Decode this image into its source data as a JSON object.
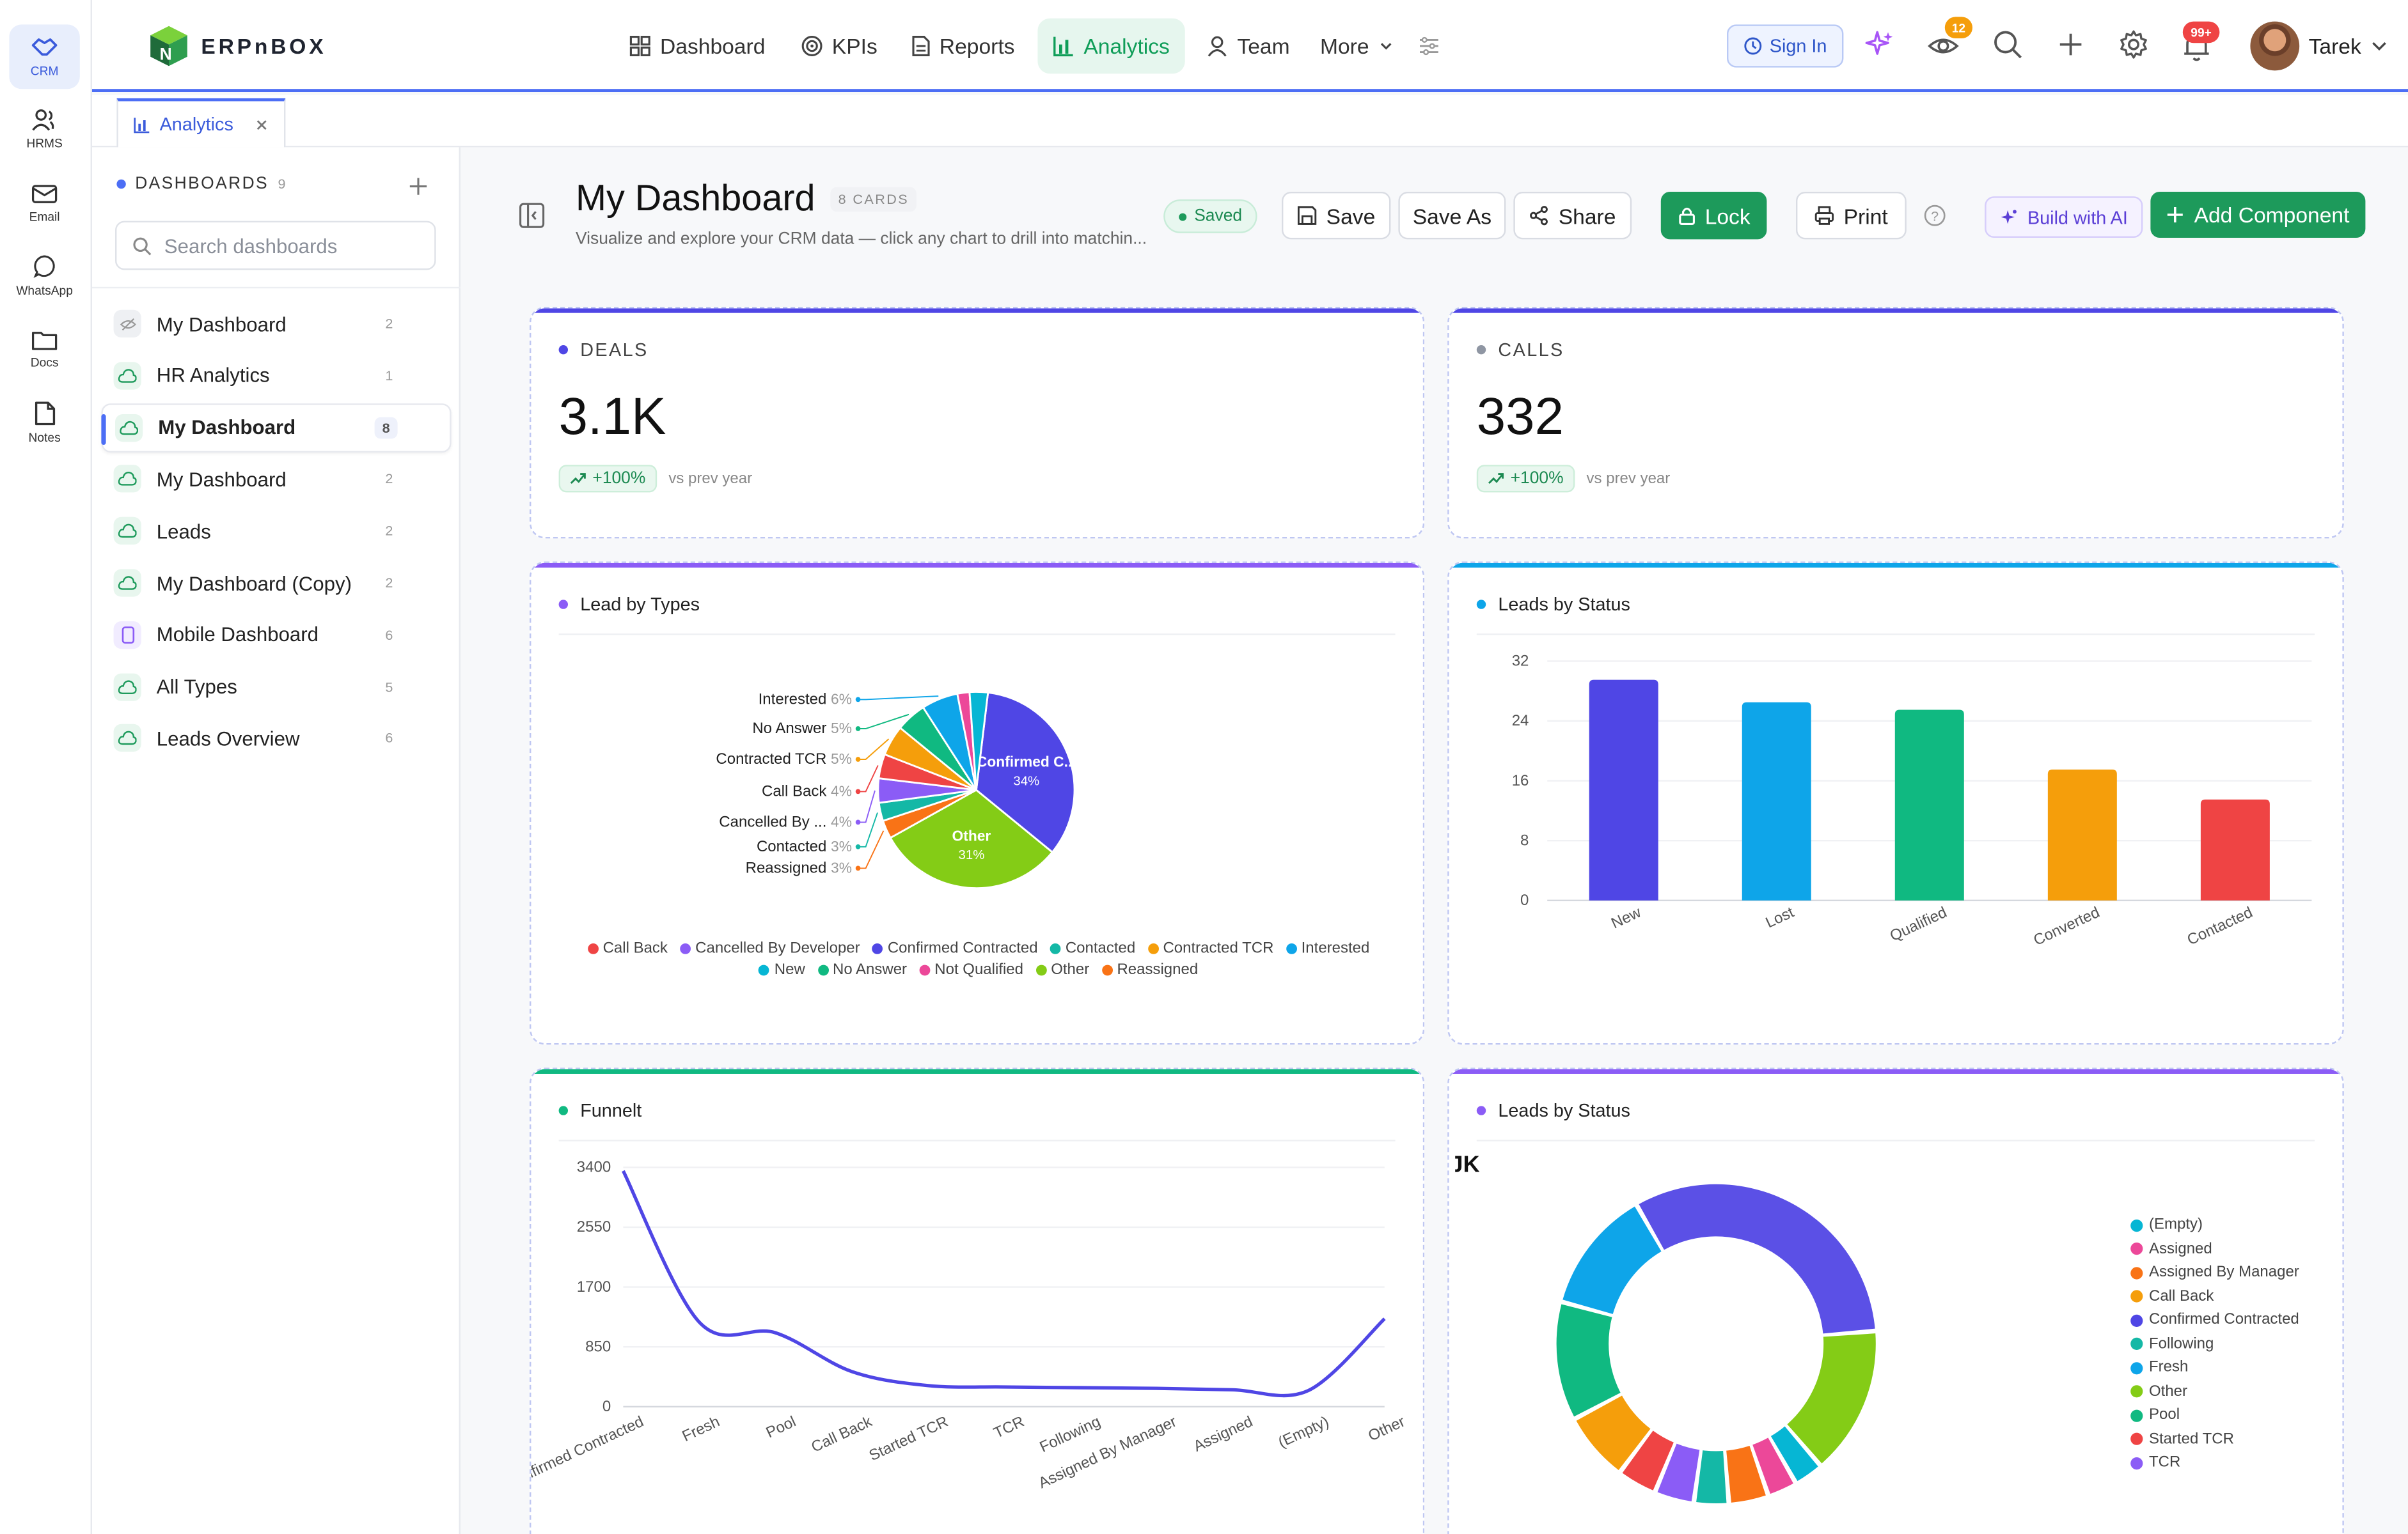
{
  "rail": [
    {
      "label": "CRM",
      "icon": "handshake-icon",
      "active": true
    },
    {
      "label": "HRMS",
      "icon": "users-icon"
    },
    {
      "label": "Email",
      "icon": "mail-icon"
    },
    {
      "label": "WhatsApp",
      "icon": "chat-bubble-icon"
    },
    {
      "label": "Docs",
      "icon": "folder-icon"
    },
    {
      "label": "Notes",
      "icon": "note-icon"
    }
  ],
  "logo_text": "ERPnBOX",
  "nav": [
    {
      "label": "Dashboard",
      "icon": "grid-icon"
    },
    {
      "label": "KPIs",
      "icon": "target-icon"
    },
    {
      "label": "Reports",
      "icon": "document-icon"
    },
    {
      "label": "Analytics",
      "icon": "bar-chart-icon",
      "active": true
    },
    {
      "label": "Team",
      "icon": "user-icon"
    },
    {
      "label": "More",
      "icon": "chevron-down-icon"
    }
  ],
  "topbar": {
    "sign_in": "Sign In",
    "eye_badge": "12",
    "bell_badge": "99+",
    "user": "Tarek"
  },
  "tab": {
    "label": "Analytics"
  },
  "sidebar": {
    "heading": "DASHBOARDS",
    "count": "9",
    "search_placeholder": "Search dashboards",
    "items": [
      {
        "label": "My Dashboard",
        "count": "2",
        "icon": "hidden-icon"
      },
      {
        "label": "HR Analytics",
        "count": "1",
        "icon": "cloud-icon"
      },
      {
        "label": "My Dashboard",
        "count": "8",
        "icon": "cloud-icon",
        "active": true
      },
      {
        "label": "My Dashboard",
        "count": "2",
        "icon": "cloud-icon"
      },
      {
        "label": "Leads",
        "count": "2",
        "icon": "cloud-icon"
      },
      {
        "label": "My Dashboard (Copy)",
        "count": "2",
        "icon": "cloud-icon"
      },
      {
        "label": "Mobile Dashboard",
        "count": "6",
        "icon": "phone-icon"
      },
      {
        "label": "All Types",
        "count": "5",
        "icon": "cloud-icon"
      },
      {
        "label": "Leads Overview",
        "count": "6",
        "icon": "cloud-icon"
      }
    ]
  },
  "header": {
    "title": "My Dashboard",
    "cards_badge": "8 CARDS",
    "subtitle": "Visualize and explore your CRM data — click any chart to drill into matchin...",
    "saved": "Saved",
    "save": "Save",
    "save_as": "Save As",
    "share": "Share",
    "lock": "Lock",
    "print": "Print",
    "build_ai": "Build with AI",
    "add_component": "Add Component"
  },
  "kpis": [
    {
      "label": "DEALS",
      "value": "3.1K",
      "delta": "+100%",
      "caption": "vs prev year",
      "color": "#4f46e5"
    },
    {
      "label": "CALLS",
      "value": "332",
      "delta": "+100%",
      "caption": "vs prev year",
      "color": "#4f46e5"
    }
  ],
  "cards": {
    "lead_types": {
      "title": "Lead by Types",
      "color": "#8b5cf6"
    },
    "leads_status_bar": {
      "title": "Leads by Status",
      "color": "#0ea5e9"
    },
    "funnel": {
      "title": "Funnelt",
      "color": "#10b981"
    },
    "leads_status_donut": {
      "title": "Leads by Status",
      "color": "#8b5cf6",
      "corner_value": "JK"
    }
  },
  "chart_data": [
    {
      "type": "pie",
      "title": "Lead by Types",
      "slices": [
        {
          "name": "Confirmed C...",
          "value": 34,
          "color": "#4f46e5",
          "label_inside": "Confirmed C...",
          "pct_text": "34%"
        },
        {
          "name": "Other",
          "value": 31,
          "color": "#84cc16",
          "label_inside": "Other",
          "pct_text": "31%"
        },
        {
          "name": "Reassigned",
          "value": 3,
          "color": "#f97316",
          "label": "Reassigned",
          "pct_text": "3%"
        },
        {
          "name": "Contacted",
          "value": 3,
          "color": "#14b8a6",
          "label": "Contacted",
          "pct_text": "3%"
        },
        {
          "name": "Cancelled By ...",
          "value": 4,
          "color": "#8b5cf6",
          "label": "Cancelled By ...",
          "pct_text": "4%"
        },
        {
          "name": "Call Back",
          "value": 4,
          "color": "#ef4444",
          "label": "Call Back",
          "pct_text": "4%"
        },
        {
          "name": "Contracted TCR",
          "value": 5,
          "color": "#f59e0b",
          "label": "Contracted TCR",
          "pct_text": "5%"
        },
        {
          "name": "No Answer",
          "value": 5,
          "color": "#10b981",
          "label": "No Answer",
          "pct_text": "5%"
        },
        {
          "name": "Interested",
          "value": 6,
          "color": "#0ea5e9",
          "label": "Interested",
          "pct_text": "6%"
        },
        {
          "name": "Not Qualified",
          "value": 2,
          "color": "#ec4899"
        },
        {
          "name": "New",
          "value": 3,
          "color": "#06b6d4"
        }
      ],
      "legend": [
        {
          "name": "Call Back",
          "color": "#ef4444"
        },
        {
          "name": "Cancelled By Developer",
          "color": "#8b5cf6"
        },
        {
          "name": "Confirmed Contracted",
          "color": "#4f46e5"
        },
        {
          "name": "Contacted",
          "color": "#14b8a6"
        },
        {
          "name": "Contracted TCR",
          "color": "#f59e0b"
        },
        {
          "name": "Interested",
          "color": "#0ea5e9"
        },
        {
          "name": "New",
          "color": "#06b6d4"
        },
        {
          "name": "No Answer",
          "color": "#10b981"
        },
        {
          "name": "Not Qualified",
          "color": "#ec4899"
        },
        {
          "name": "Other",
          "color": "#84cc16"
        },
        {
          "name": "Reassigned",
          "color": "#f97316"
        }
      ]
    },
    {
      "type": "bar",
      "title": "Leads by Status",
      "categories": [
        "New",
        "Lost",
        "Qualified",
        "Converted",
        "Contacted"
      ],
      "values": [
        29.5,
        26.5,
        25.5,
        17.5,
        13.5
      ],
      "colors": [
        "#4f46e5",
        "#0ea5e9",
        "#10b981",
        "#f59e0b",
        "#ef4444"
      ],
      "ylim": [
        0,
        32
      ],
      "yticks": [
        0,
        8,
        16,
        24,
        32
      ]
    },
    {
      "type": "line",
      "title": "Funnelt",
      "categories": [
        "Confirmed Contracted",
        "Fresh",
        "Pool",
        "Call Back",
        "Started TCR",
        "TCR",
        "Following",
        "Assigned By Manager",
        "Assigned",
        "(Empty)",
        "Other"
      ],
      "values": [
        3350,
        1200,
        1050,
        500,
        300,
        280,
        270,
        260,
        240,
        230,
        1250
      ],
      "ylim": [
        0,
        3400
      ],
      "yticks": [
        0,
        850,
        1700,
        2550,
        3400
      ],
      "color": "#4f46e5"
    },
    {
      "type": "pie",
      "title": "Leads by Status",
      "donut": true,
      "slices": [
        {
          "name": "Confirmed Contracted",
          "value": 32,
          "color": "#5b50e6"
        },
        {
          "name": "Other",
          "value": 15,
          "color": "#84cc16"
        },
        {
          "name": "(Empty)",
          "value": 3,
          "color": "#06b6d4"
        },
        {
          "name": "Assigned",
          "value": 3,
          "color": "#ec4899"
        },
        {
          "name": "Assigned By Manager",
          "value": 4,
          "color": "#f97316"
        },
        {
          "name": "Following",
          "value": 3.5,
          "color": "#14b8a6"
        },
        {
          "name": "TCR",
          "value": 4,
          "color": "#8b5cf6"
        },
        {
          "name": "Started TCR",
          "value": 4,
          "color": "#ef4444"
        },
        {
          "name": "Call Back",
          "value": 7,
          "color": "#f59e0b"
        },
        {
          "name": "Pool",
          "value": 12,
          "color": "#10b981"
        },
        {
          "name": "Fresh",
          "value": 12.5,
          "color": "#0ea5e9"
        }
      ],
      "legend": [
        {
          "name": "(Empty)",
          "color": "#06b6d4"
        },
        {
          "name": "Assigned",
          "color": "#ec4899"
        },
        {
          "name": "Assigned By Manager",
          "color": "#f97316"
        },
        {
          "name": "Call Back",
          "color": "#f59e0b"
        },
        {
          "name": "Confirmed Contracted",
          "color": "#4f46e5"
        },
        {
          "name": "Following",
          "color": "#14b8a6"
        },
        {
          "name": "Fresh",
          "color": "#0ea5e9"
        },
        {
          "name": "Other",
          "color": "#84cc16"
        },
        {
          "name": "Pool",
          "color": "#10b981"
        },
        {
          "name": "Started TCR",
          "color": "#ef4444"
        },
        {
          "name": "TCR",
          "color": "#8b5cf6"
        }
      ]
    }
  ]
}
